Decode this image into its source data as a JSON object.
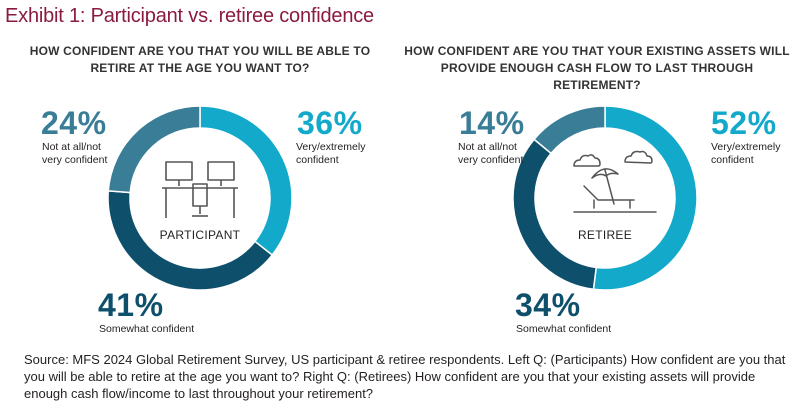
{
  "title": "Exhibit 1: Participant vs. retiree confidence",
  "colors": {
    "very_extremely": "#12a9cb",
    "somewhat": "#0e4f6c",
    "not_at_all": "#3a7d97",
    "title": "#8a1b3f"
  },
  "chart_data": [
    {
      "type": "pie",
      "question": "HOW CONFIDENT ARE YOU THAT YOU WILL BE ABLE TO RETIRE AT THE AGE YOU WANT TO?",
      "center_label": "PARTICIPANT",
      "center_icon": "desk-workstation-icon",
      "categories": [
        "Very/extremely confident",
        "Somewhat confident",
        "Not at all/not very confident"
      ],
      "values": [
        36,
        41,
        24
      ],
      "value_labels": [
        "36%",
        "41%",
        "24%"
      ]
    },
    {
      "type": "pie",
      "question": "HOW CONFIDENT ARE YOU THAT YOUR EXISTING ASSETS WILL PROVIDE ENOUGH CASH FLOW TO LAST THROUGH RETIREMENT?",
      "center_label": "RETIREE",
      "center_icon": "beach-lounger-icon",
      "categories": [
        "Very/extremely confident",
        "Somewhat confident",
        "Not at all/not very confident"
      ],
      "values": [
        52,
        34,
        14
      ],
      "value_labels": [
        "52%",
        "34%",
        "14%"
      ]
    }
  ],
  "source": "Source: MFS 2024 Global Retirement Survey, US participant & retiree respondents. Left Q: (Participants) How confident are you that you will be able to retire at the age you want to? Right Q: (Retirees) How confident are you that your existing assets will provide enough cash flow/income to last throughout your retirement?"
}
